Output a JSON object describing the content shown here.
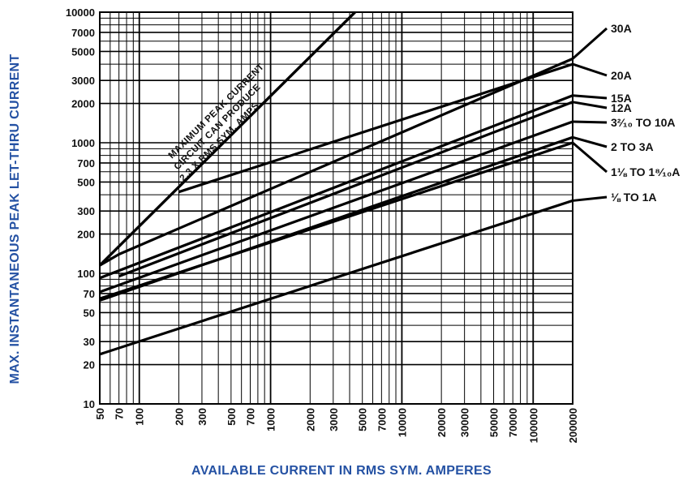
{
  "chart_data": {
    "type": "line",
    "title": "",
    "xlabel": "AVAILABLE CURRENT IN RMS SYM. AMPERES",
    "ylabel": "MAX. INSTANTANEOUS PEAK LET-THRU CURRENT",
    "xscale": "log",
    "yscale": "log",
    "xlim": [
      50,
      200000
    ],
    "ylim": [
      10,
      10000
    ],
    "grid": true,
    "x_ticks": [
      "50",
      "70",
      "100",
      "200",
      "300",
      "500",
      "700",
      "1000",
      "2000",
      "3000",
      "5000",
      "7000",
      "10000",
      "20000",
      "30000",
      "50000",
      "70000",
      "100000",
      "200000"
    ],
    "y_ticks": [
      "10",
      "20",
      "30",
      "50",
      "70",
      "100",
      "200",
      "300",
      "500",
      "700",
      "1000",
      "2000",
      "3000",
      "5000",
      "7000",
      "10000"
    ],
    "series": [
      {
        "name": "30A",
        "x": [
          50,
          70,
          200000
        ],
        "y": [
          115,
          140,
          4400
        ]
      },
      {
        "name": "20A",
        "x": [
          200,
          200000
        ],
        "y": [
          420,
          4000
        ]
      },
      {
        "name": "15A",
        "x": [
          50,
          200000
        ],
        "y": [
          92,
          2300
        ]
      },
      {
        "name": "12A",
        "x": [
          70,
          200000
        ],
        "y": [
          95,
          2050
        ]
      },
      {
        "name": "3²⁄₁₀ TO 10A",
        "x": [
          50,
          200000
        ],
        "y": [
          72,
          1450
        ]
      },
      {
        "name": "2 TO 3A",
        "x": [
          50,
          200000
        ],
        "y": [
          62,
          1100
        ]
      },
      {
        "name": "1⅛ TO 1⁸⁄₁₀A",
        "x": [
          50,
          200000
        ],
        "y": [
          64,
          1000
        ]
      },
      {
        "name": "⅛ TO 1A",
        "x": [
          50,
          200000
        ],
        "y": [
          24,
          360
        ]
      }
    ],
    "max_peak_line": {
      "x": [
        50,
        4400
      ],
      "y": [
        115,
        10000
      ]
    },
    "annotation": [
      "MAXIMUM PEAK CURRENT",
      "CIRCUIT CAN PRODUCE",
      "2.3 X RMS SYM. AMPS"
    ]
  }
}
